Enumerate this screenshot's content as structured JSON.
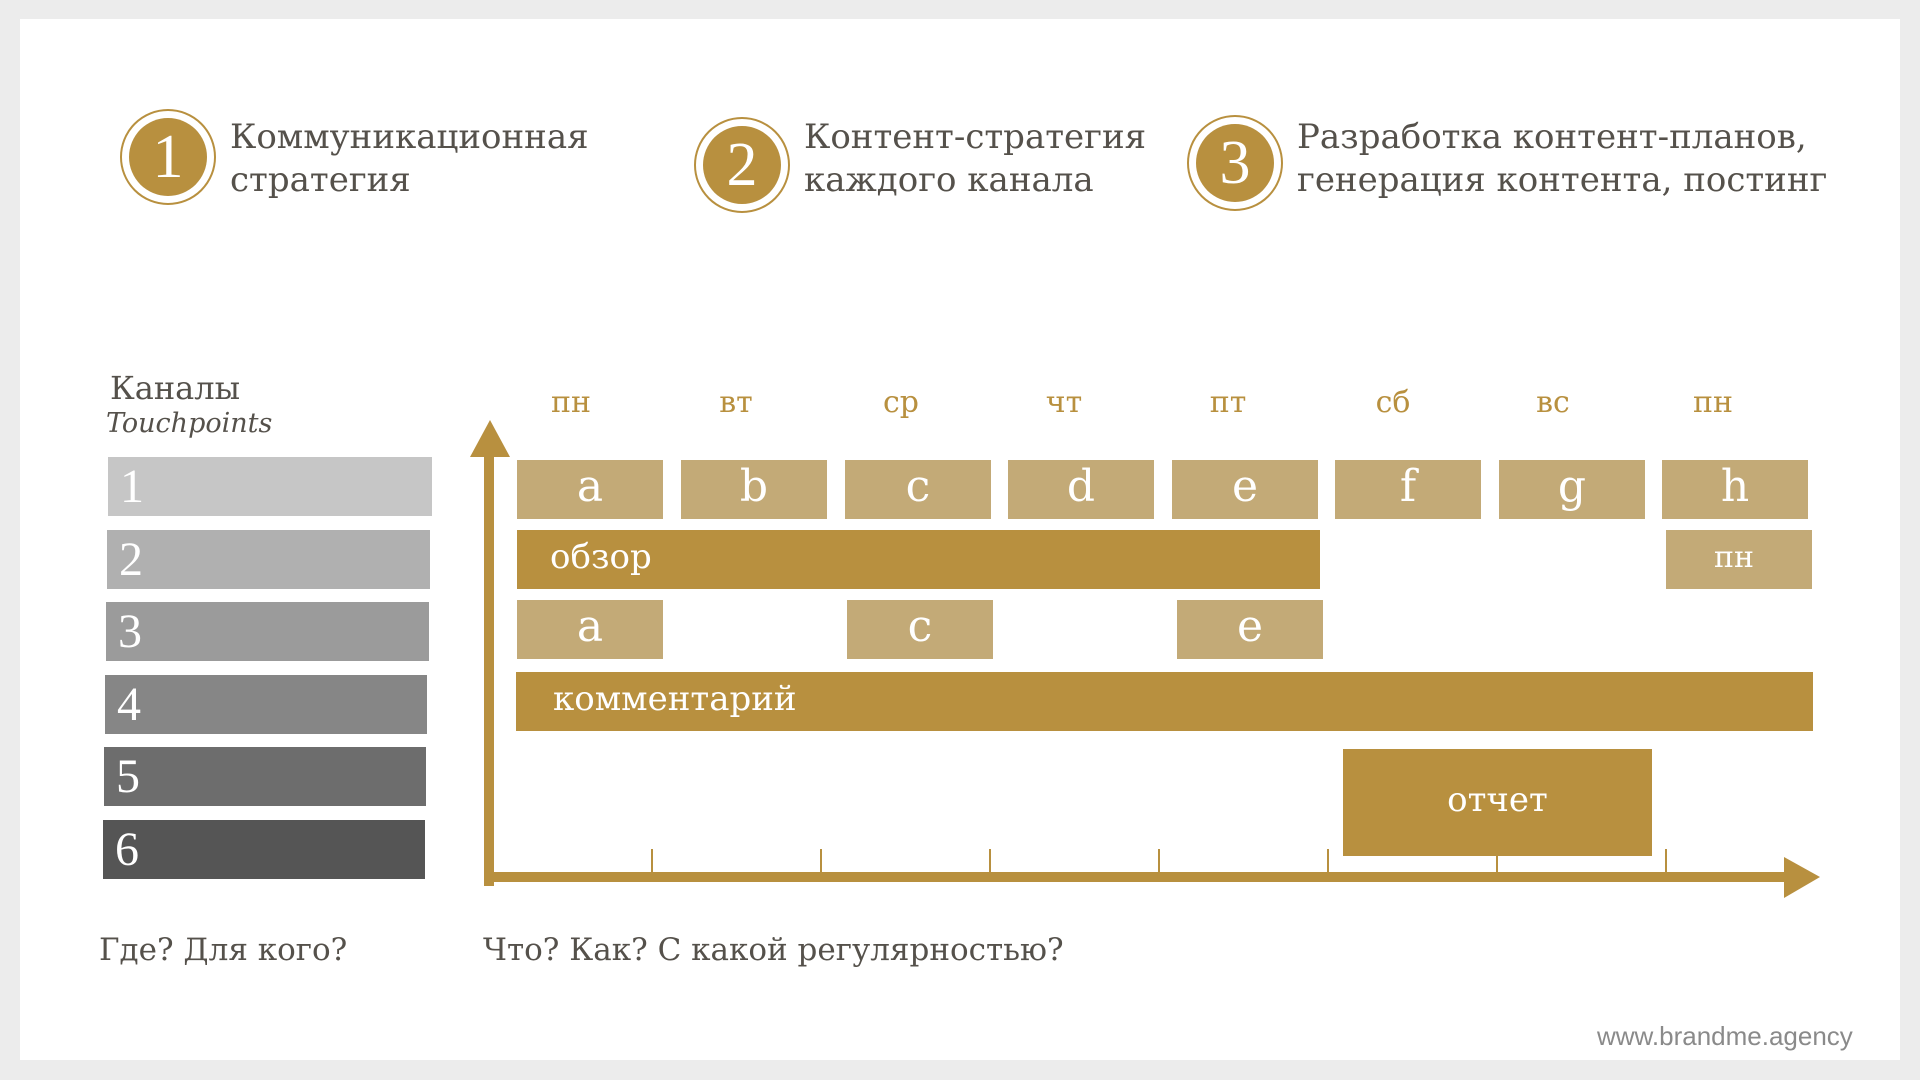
{
  "steps": [
    {
      "num": "1",
      "line1": "Коммуникационная",
      "line2": "стратегия"
    },
    {
      "num": "2",
      "line1": "Контент-стратегия",
      "line2": "каждого канала"
    },
    {
      "num": "3",
      "line1": "Разработка контент-планов,",
      "line2": "генерация контента, постинг"
    }
  ],
  "channels": {
    "title": "Каналы",
    "subtitle": "Touchpoints",
    "items": [
      "1",
      "2",
      "3",
      "4",
      "5",
      "6"
    ],
    "colors": [
      "#c6c6c6",
      "#b0b0b0",
      "#9b9b9b",
      "#868686",
      "#6d6d6d",
      "#555555"
    ]
  },
  "schedule": {
    "days": [
      "пн",
      "вт",
      "ср",
      "чт",
      "пт",
      "сб",
      "вс",
      "пн"
    ],
    "row1": [
      "a",
      "b",
      "c",
      "d",
      "e",
      "f",
      "g",
      "h"
    ],
    "row2_main": "обзор",
    "row2_end": "пн",
    "row3": [
      "a",
      "c",
      "e"
    ],
    "row4": "комментарий",
    "report": "отчет"
  },
  "questions": {
    "left": "Где? Для кого?",
    "right": "Что? Как? С какой регулярностью?"
  },
  "footer": "www.brandme.agency",
  "colors": {
    "accent": "#b8903f",
    "light_accent": "#c3aa77",
    "text": "#55514b"
  }
}
